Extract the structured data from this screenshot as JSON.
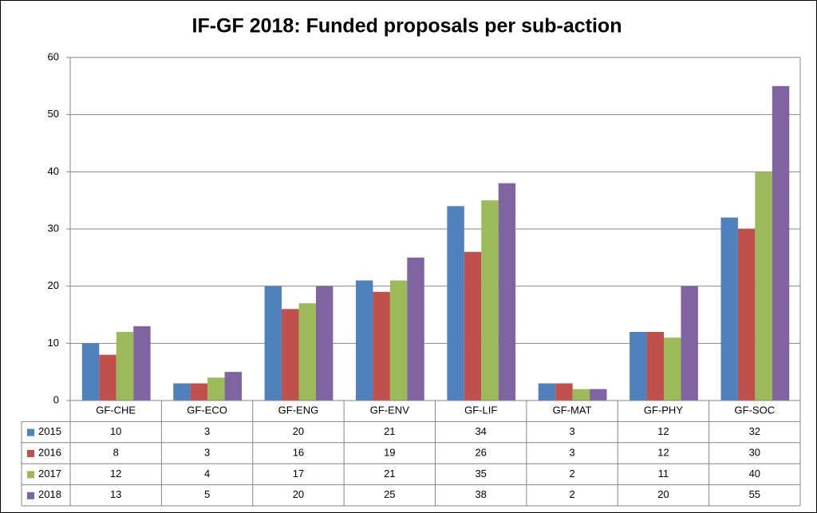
{
  "chart_data": {
    "type": "bar",
    "title": "IF-GF 2018: Funded proposals per sub-action",
    "categories": [
      "GF-CHE",
      "GF-ECO",
      "GF-ENG",
      "GF-ENV",
      "GF-LIF",
      "GF-MAT",
      "GF-PHY",
      "GF-SOC"
    ],
    "series": [
      {
        "name": "2015",
        "color": "#4f81bd",
        "values": [
          10,
          3,
          20,
          21,
          34,
          3,
          12,
          32
        ]
      },
      {
        "name": "2016",
        "color": "#c0504d",
        "values": [
          8,
          3,
          16,
          19,
          26,
          3,
          12,
          30
        ]
      },
      {
        "name": "2017",
        "color": "#9bbb59",
        "values": [
          12,
          4,
          17,
          21,
          35,
          2,
          11,
          40
        ]
      },
      {
        "name": "2018",
        "color": "#8064a2",
        "values": [
          13,
          5,
          20,
          25,
          38,
          2,
          20,
          55
        ]
      }
    ],
    "ylim": [
      0,
      60
    ],
    "yticks": [
      0,
      10,
      20,
      30,
      40,
      50,
      60
    ],
    "grid": true,
    "data_table": true
  }
}
